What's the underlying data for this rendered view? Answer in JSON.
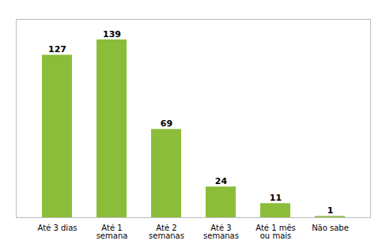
{
  "chart_data": {
    "type": "bar",
    "categories": [
      "Até 3 dias",
      "Até 1\nsemana",
      "Até 2\nsemanas",
      "Até 3\nsemanas",
      "Até 1 mês\nou mais",
      "Não sabe"
    ],
    "values": [
      127,
      139,
      69,
      24,
      11,
      1
    ],
    "color": "#8BBD3A",
    "ylim": [
      0,
      155
    ],
    "data_labels": true,
    "tick_labels": "x"
  }
}
